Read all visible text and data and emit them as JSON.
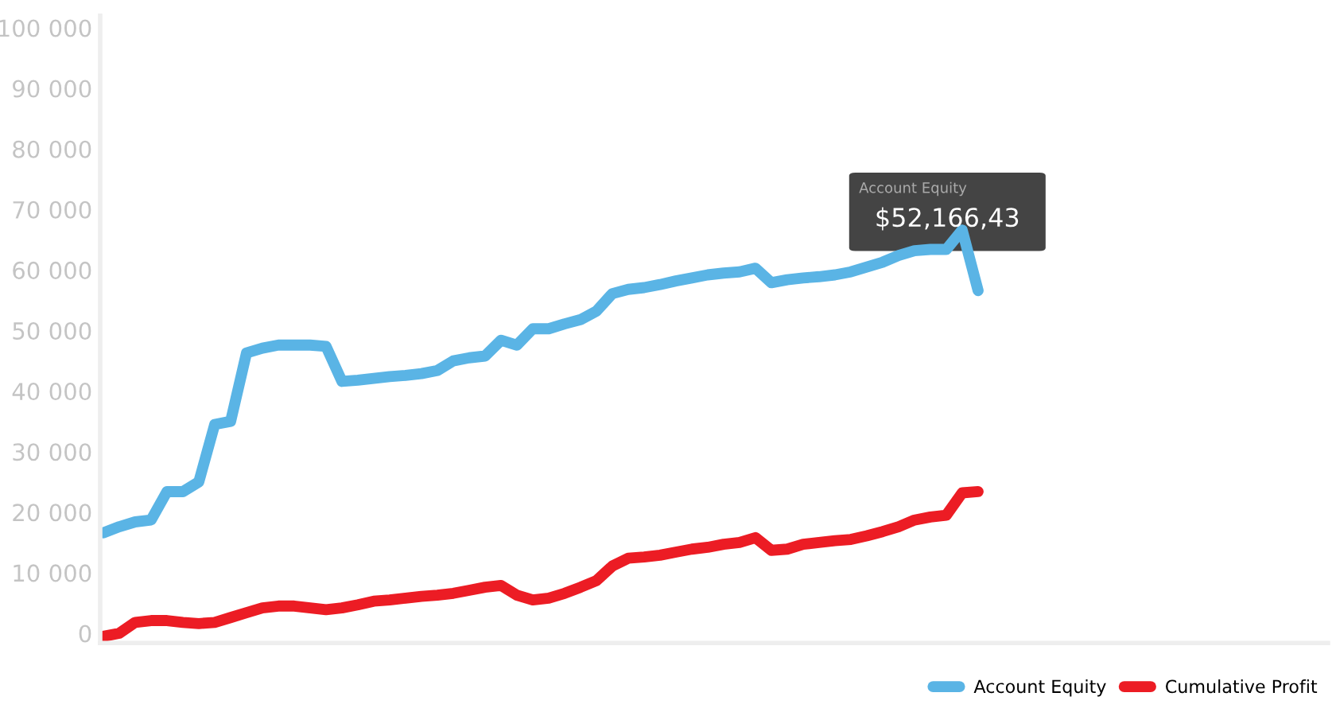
{
  "chart_data": {
    "type": "line",
    "categories": [
      null,
      null,
      null,
      null,
      null,
      null,
      null,
      null,
      null,
      null,
      null,
      null,
      null,
      null,
      null,
      null,
      null,
      null,
      null,
      null,
      null,
      null,
      null,
      null,
      null,
      null,
      null,
      null,
      null,
      null,
      null,
      null,
      null,
      null,
      null,
      null,
      null,
      null,
      null,
      null,
      null,
      null,
      null,
      null,
      null,
      null,
      null,
      null,
      null,
      null,
      null,
      null,
      null,
      null,
      null,
      null,
      null,
      null,
      null,
      null,
      null,
      null,
      null,
      null,
      null,
      null,
      null,
      null,
      null,
      null,
      null,
      null,
      null,
      null,
      null,
      null,
      null,
      null
    ],
    "series": [
      {
        "name": "Account Equity",
        "color": "#5ab4e5",
        "values": [
          16600,
          17600,
          18400,
          18700,
          23400,
          23400,
          25000,
          34500,
          35000,
          46300,
          47100,
          47600,
          47600,
          47600,
          47400,
          41600,
          41800,
          42100,
          42400,
          42600,
          42900,
          43400,
          45000,
          45500,
          45800,
          48400,
          47600,
          50300,
          50300,
          51100,
          51800,
          53200,
          56100,
          56800,
          57100,
          57600,
          58200,
          58700,
          59200,
          59500,
          59700,
          60300,
          57900,
          58400,
          58700,
          58900,
          59200,
          59700,
          60500,
          61300,
          62400,
          63200,
          63400,
          63400,
          66600,
          56600,
          null,
          null,
          null,
          null,
          null,
          null,
          null,
          null,
          null,
          null,
          null,
          null,
          null,
          null,
          null,
          null,
          null,
          null,
          null,
          null,
          null,
          null
        ]
      },
      {
        "name": "Cumulative Profit",
        "color": "#ec1c24",
        "values": [
          -500,
          0,
          1800,
          2100,
          2100,
          1800,
          1600,
          1800,
          2600,
          3400,
          4200,
          4500,
          4500,
          4200,
          3900,
          4200,
          4700,
          5300,
          5500,
          5800,
          6100,
          6300,
          6600,
          7100,
          7600,
          7900,
          6300,
          5500,
          5800,
          6600,
          7600,
          8700,
          11100,
          12400,
          12600,
          12900,
          13400,
          13900,
          14200,
          14700,
          15000,
          15800,
          13700,
          13900,
          14700,
          15000,
          15300,
          15500,
          16100,
          16800,
          17600,
          18700,
          19200,
          19500,
          23200,
          23400,
          null,
          null,
          null,
          null,
          null,
          null,
          null,
          null,
          null,
          null,
          null,
          null,
          null,
          null,
          null,
          null,
          null,
          null,
          null,
          null,
          null,
          null
        ]
      }
    ],
    "ylim": [
      -1600,
      102000
    ],
    "yticks": [
      0,
      {
        "value": 10000,
        "label": "10 000"
      },
      {
        "value": 20000,
        "label": "20 000"
      },
      {
        "value": 30000,
        "label": "30 000"
      },
      {
        "value": 40000,
        "label": "40 000"
      },
      {
        "value": 50000,
        "label": "50 000"
      },
      {
        "value": 60000,
        "label": "60 000"
      },
      {
        "value": 70000,
        "label": "70 000"
      },
      {
        "value": 80000,
        "label": "80 000"
      },
      {
        "value": 90000,
        "label": "90 000"
      },
      {
        "value": 100000,
        "label": "100 000"
      }
    ],
    "tick_labels": "y",
    "annotations": [
      "Account Equity",
      "$52,166,43"
    ],
    "legend": "bottom right",
    "marker": "none",
    "line_style": "solid",
    "grid": false
  }
}
